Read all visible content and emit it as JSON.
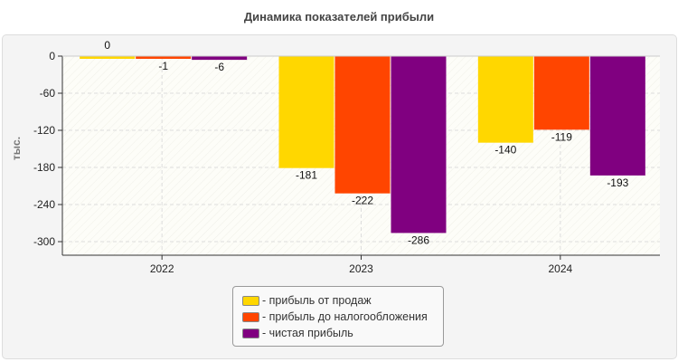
{
  "chart_data": {
    "type": "bar",
    "title": "Динамика показателей прибыли",
    "ylabel": "тыс.",
    "xlabel": "",
    "categories": [
      "2022",
      "2023",
      "2024"
    ],
    "ylim": [
      -322,
      0
    ],
    "yticks": [
      0,
      -60,
      -120,
      -180,
      -240,
      -300
    ],
    "grid": true,
    "legend_position": "bottom",
    "series": [
      {
        "name": "- прибыль от продаж",
        "color": "#FFD700",
        "values": [
          0,
          -181,
          -140
        ]
      },
      {
        "name": "- прибыль до налогообложения",
        "color": "#FF4500",
        "values": [
          -1,
          -222,
          -119
        ]
      },
      {
        "name": "- чистая прибыль",
        "color": "#800080",
        "values": [
          -6,
          -286,
          -193
        ]
      }
    ]
  }
}
